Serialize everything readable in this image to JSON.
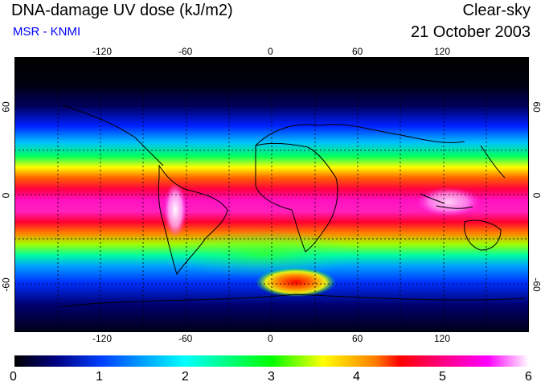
{
  "header": {
    "title": "DNA-damage UV dose (kJ/m2)",
    "source": "MSR - KNMI",
    "condition": "Clear-sky",
    "date": "21 October 2003"
  },
  "map": {
    "longitude_ticks": [
      "-120",
      "-60",
      "0",
      "60",
      "120"
    ],
    "latitude_ticks": [
      "60",
      "0",
      "-60"
    ]
  },
  "color_scale": {
    "labels": [
      "0",
      "1",
      "2",
      "3",
      "4",
      "5",
      "6"
    ],
    "stops": [
      "#000000",
      "#000080",
      "#0000ff",
      "#00ffff",
      "#00ff00",
      "#ffff00",
      "#ff8000",
      "#ff0000",
      "#ff0080",
      "#ff00ff",
      "#ffffff"
    ]
  }
}
